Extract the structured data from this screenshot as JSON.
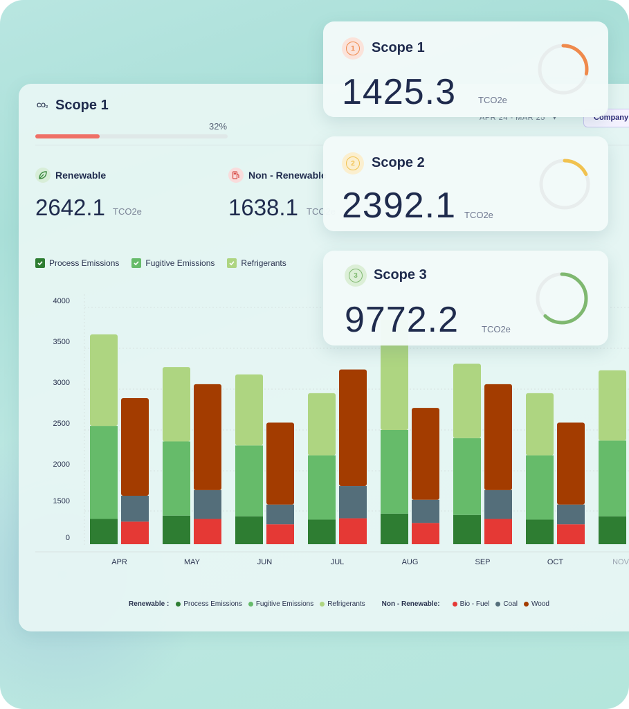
{
  "header": {
    "co2_label": "CO₂",
    "title": "Scope 1",
    "progress_pct": 32,
    "progress_label": "32%",
    "date_filter": "APR 24 - MAR 25",
    "company_filter": "Company"
  },
  "stats": {
    "renewable": {
      "label": "Renewable",
      "value": "2642.1",
      "unit": "TCO2e"
    },
    "non_renewable": {
      "label": "Non - Renewable",
      "value": "1638.1",
      "unit": "TCO2e"
    }
  },
  "legend_top": [
    {
      "label": "Process Emissions",
      "color": "#2e7d32"
    },
    {
      "label": "Fugitive Emissions",
      "color": "#66bb6a"
    },
    {
      "label": "Refrigerants",
      "color": "#aed581"
    }
  ],
  "bottom_legend": {
    "renewable_label": "Renewable :",
    "renewable_items": [
      {
        "label": "Process Emissions",
        "color": "#2e7d32"
      },
      {
        "label": "Fugitive Emissions",
        "color": "#66bb6a"
      },
      {
        "label": "Refrigerants",
        "color": "#aed581"
      }
    ],
    "non_renewable_label": "Non - Renewable:",
    "non_renewable_items": [
      {
        "label": "Bio - Fuel",
        "color": "#e53935"
      },
      {
        "label": "Coal",
        "color": "#546e7a"
      },
      {
        "label": "Wood",
        "color": "#a33c00"
      }
    ]
  },
  "chart_data": {
    "type": "bar",
    "stacked": true,
    "grouped": true,
    "categories": [
      "APR",
      "MAY",
      "JUN",
      "JUL",
      "AUG",
      "SEP",
      "OCT",
      "NOV"
    ],
    "y_tick_labels": [
      "0",
      "1500",
      "2000",
      "2500",
      "3000",
      "3500",
      "4000"
    ],
    "renewable_series": [
      {
        "name": "Process Emissions",
        "color": "#2e7d32",
        "values": [
          1380,
          1430,
          1420,
          1370,
          1460,
          1440,
          1370,
          1420
        ]
      },
      {
        "name": "Fugitive Emissions",
        "color": "#66bb6a",
        "values": [
          2550,
          2360,
          2310,
          2190,
          2500,
          2400,
          2190,
          2370
        ]
      },
      {
        "name": "Refrigerants",
        "color": "#aed581",
        "values": [
          3670,
          3270,
          3180,
          2950,
          3850,
          3310,
          2950,
          3230
        ]
      }
    ],
    "non_renewable_series": [
      {
        "name": "Bio - Fuel",
        "color": "#e53935",
        "values": [
          1340,
          1380,
          1300,
          1390,
          1320,
          1380,
          1300,
          null
        ]
      },
      {
        "name": "Coal",
        "color": "#546e7a",
        "values": [
          1690,
          1760,
          1580,
          1810,
          1640,
          1760,
          1580,
          null
        ]
      },
      {
        "name": "Wood",
        "color": "#a33c00",
        "values": [
          2890,
          3060,
          2590,
          3240,
          2770,
          3060,
          2590,
          null
        ]
      }
    ]
  },
  "scopes": [
    {
      "title": "Scope 1",
      "number": "1",
      "value": "1425.3",
      "unit": "TCO2e",
      "color": "#ef8a4c",
      "badge_bg": "#fbe3da",
      "progress": 0.28
    },
    {
      "title": "Scope 2",
      "number": "2",
      "value": "2392.1",
      "unit": "TCO2e",
      "color": "#f1c24f",
      "badge_bg": "#fbefcf",
      "progress": 0.18
    },
    {
      "title": "Scope 3",
      "number": "3",
      "value": "9772.2",
      "unit": "TCO2e",
      "color": "#7fb870",
      "badge_bg": "#dcefd7",
      "progress": 0.62
    }
  ]
}
